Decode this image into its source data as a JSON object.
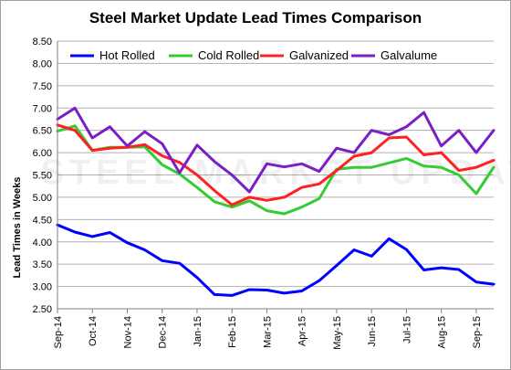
{
  "chart_data": {
    "type": "line",
    "title": "Steel Market Update Lead Times Comparison",
    "ylabel": "Lead Times in Weeks",
    "xlabel": "",
    "watermark": "STEEL MARKET UPDATE",
    "ylim": [
      2.5,
      8.5
    ],
    "yticks": [
      "2.50",
      "3.00",
      "3.50",
      "4.00",
      "4.50",
      "5.00",
      "5.50",
      "6.00",
      "6.50",
      "7.00",
      "7.50",
      "8.00",
      "8.50"
    ],
    "xticks": [
      "Sep-14",
      "Oct-14",
      "Nov-14",
      "Dec-14",
      "Jan-15",
      "Feb-15",
      "Mar-15",
      "Apr-15",
      "May-15",
      "Jun-15",
      "Jul-15",
      "Aug-15",
      "Sep-15"
    ],
    "points_per_month": 2,
    "grid": true,
    "legend_position": "top",
    "series": [
      {
        "name": "Hot Rolled",
        "color": "#0000ff",
        "values": [
          4.38,
          4.22,
          4.12,
          4.21,
          3.98,
          3.82,
          3.58,
          3.52,
          3.2,
          2.82,
          2.8,
          2.93,
          2.92,
          2.85,
          2.9,
          3.13,
          3.47,
          3.82,
          3.68,
          4.07,
          3.83,
          3.37,
          3.42,
          3.38,
          3.1,
          3.05
        ]
      },
      {
        "name": "Cold Rolled",
        "color": "#33cc33",
        "values": [
          6.48,
          6.6,
          6.05,
          6.12,
          6.12,
          6.13,
          5.73,
          5.52,
          5.22,
          4.9,
          4.78,
          4.92,
          4.7,
          4.63,
          4.78,
          4.97,
          5.63,
          5.67,
          5.67,
          5.77,
          5.87,
          5.7,
          5.67,
          5.5,
          5.08,
          5.67
        ]
      },
      {
        "name": "Galvanized",
        "color": "#ff2020",
        "values": [
          6.62,
          6.5,
          6.05,
          6.1,
          6.12,
          6.18,
          5.93,
          5.78,
          5.5,
          5.15,
          4.83,
          5.0,
          4.93,
          5.0,
          5.22,
          5.3,
          5.6,
          5.92,
          6.0,
          6.33,
          6.35,
          5.95,
          6.0,
          5.6,
          5.67,
          5.83
        ]
      },
      {
        "name": "Galvalume",
        "color": "#7a1fc4",
        "values": [
          6.75,
          7.0,
          6.33,
          6.58,
          6.15,
          6.47,
          6.2,
          5.55,
          6.17,
          5.8,
          5.5,
          5.12,
          5.75,
          5.68,
          5.75,
          5.58,
          6.1,
          6.0,
          6.5,
          6.4,
          6.58,
          6.9,
          6.15,
          6.5,
          6.0,
          6.5
        ]
      }
    ]
  }
}
